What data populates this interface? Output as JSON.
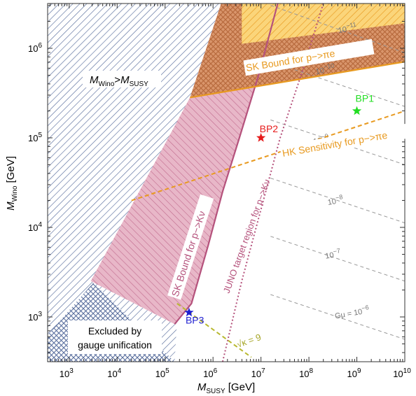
{
  "chart_data": {
    "type": "area",
    "title": "",
    "xlabel": {
      "main": "M",
      "sub": "SUSY",
      "unit": " [GeV]"
    },
    "ylabel": {
      "main": "M",
      "sub": "Wino",
      "unit": " [GeV]"
    },
    "xscale": "log",
    "yscale": "log",
    "xlim_log10": [
      2.55,
      10
    ],
    "ylim_log10": [
      2.5,
      6.5
    ],
    "x_ticks": [
      {
        "exp": 3,
        "label": "10",
        "sup": "3"
      },
      {
        "exp": 4,
        "label": "10",
        "sup": "4"
      },
      {
        "exp": 5,
        "label": "10",
        "sup": "5"
      },
      {
        "exp": 6,
        "label": "10",
        "sup": "6"
      },
      {
        "exp": 7,
        "label": "10",
        "sup": "7"
      },
      {
        "exp": 8,
        "label": "10",
        "sup": "8"
      },
      {
        "exp": 9,
        "label": "10",
        "sup": "9"
      },
      {
        "exp": 10,
        "label": "10",
        "sup": "10"
      }
    ],
    "y_ticks": [
      {
        "exp": 3,
        "label": "10",
        "sup": "3"
      },
      {
        "exp": 4,
        "label": "10",
        "sup": "4"
      },
      {
        "exp": 5,
        "label": "10",
        "sup": "5"
      },
      {
        "exp": 6,
        "label": "10",
        "sup": "6"
      }
    ],
    "regions": [
      {
        "id": "wino-gt-msusy",
        "color": "#5a6f9e",
        "points": [
          [
            2.55,
            2.5
          ],
          [
            2.55,
            6.5
          ],
          [
            6.17,
            6.5
          ],
          [
            5.52,
            5.45
          ],
          [
            5.2,
            2.5
          ]
        ]
      },
      {
        "id": "gauge-unification",
        "color": "#5a6f9e",
        "points": [
          [
            2.55,
            2.5
          ],
          [
            2.55,
            2.8
          ],
          [
            3.5,
            3.38
          ],
          [
            5.2,
            2.5
          ]
        ]
      },
      {
        "id": "sk-pkv-excluded",
        "color": "#c06a8d",
        "points": [
          [
            3.45,
            3.4
          ],
          [
            5.2,
            2.92
          ],
          [
            5.55,
            3.15
          ],
          [
            5.9,
            3.8
          ],
          [
            6.2,
            4.4
          ],
          [
            6.55,
            5.0
          ],
          [
            6.95,
            5.7
          ],
          [
            6.17,
            6.5
          ],
          [
            5.52,
            5.45
          ]
        ]
      },
      {
        "id": "sk-pie-excluded",
        "color": "#d48a30",
        "points": [
          [
            5.52,
            5.45
          ],
          [
            10,
            5.85
          ],
          [
            10,
            6.5
          ],
          [
            6.17,
            6.5
          ]
        ]
      },
      {
        "id": "sk-pie-band",
        "color": "#f0a830",
        "points": [
          [
            6.6,
            6.05
          ],
          [
            10,
            6.28
          ],
          [
            10,
            6.5
          ],
          [
            6.6,
            6.5
          ]
        ]
      }
    ],
    "curves": [
      {
        "id": "sk-pkv-boundary",
        "color": "#b5527c",
        "style": "solid",
        "points": [
          [
            5.2,
            2.92
          ],
          [
            5.55,
            3.15
          ],
          [
            5.9,
            3.8
          ],
          [
            6.2,
            4.4
          ],
          [
            6.55,
            5.0
          ],
          [
            6.95,
            5.7
          ],
          [
            7.35,
            6.5
          ]
        ]
      },
      {
        "id": "juno-target",
        "color": "#b5527c",
        "style": "dotted",
        "points": [
          [
            6.2,
            2.5
          ],
          [
            6.6,
            3.4
          ],
          [
            7.0,
            4.2
          ],
          [
            7.4,
            5.0
          ],
          [
            7.9,
            5.8
          ],
          [
            8.3,
            6.5
          ]
        ]
      },
      {
        "id": "sk-pie-boundary",
        "color": "#e89a20",
        "style": "solid",
        "points": [
          [
            5.52,
            5.45
          ],
          [
            10,
            5.85
          ]
        ]
      },
      {
        "id": "hk-sensitivity",
        "color": "#e89a20",
        "style": "dashed",
        "points": [
          [
            4.3,
            4.3
          ],
          [
            10,
            5.3
          ]
        ]
      },
      {
        "id": "sqrt-kappa-9",
        "color": "#b8b830",
        "style": "dashed",
        "points": [
          [
            5.25,
            3.15
          ],
          [
            6.8,
            2.55
          ]
        ]
      }
    ],
    "contours": [
      {
        "label": "10",
        "sup": "−11",
        "points": [
          [
            7.2,
            6.48
          ],
          [
            10,
            5.95
          ]
        ],
        "label_at": [
          8.62,
          6.17
        ]
      },
      {
        "label": "10",
        "sup": "−10",
        "points": [
          [
            7.2,
            5.85
          ],
          [
            10,
            5.35
          ]
        ],
        "label_at": [
          8.15,
          5.71
        ]
      },
      {
        "label": "10",
        "sup": "−9",
        "points": [
          [
            7.2,
            5.2
          ],
          [
            10,
            4.7
          ]
        ],
        "label_at": [
          8.1,
          4.93
        ]
      },
      {
        "label": "10",
        "sup": "−8",
        "points": [
          [
            7.2,
            4.55
          ],
          [
            10,
            4.05
          ]
        ],
        "label_at": [
          8.4,
          4.25
        ]
      },
      {
        "label": "10",
        "sup": "−7",
        "points": [
          [
            7.2,
            3.9
          ],
          [
            10,
            3.4
          ]
        ],
        "label_at": [
          8.35,
          3.65
        ]
      },
      {
        "label": "Gμ = 10",
        "sup": "−6",
        "points": [
          [
            7.2,
            3.25
          ],
          [
            10,
            2.75
          ]
        ],
        "label_at": [
          8.55,
          2.98
        ]
      }
    ],
    "benchmarks": [
      {
        "name": "BP1",
        "x_log10": 9,
        "y_log10": 5.3,
        "color": "#22dd22"
      },
      {
        "name": "BP2",
        "x_log10": 7,
        "y_log10": 5.0,
        "color": "#e61b1b"
      },
      {
        "name": "BP3",
        "x_log10": 5.5,
        "y_log10": 3.05,
        "color": "#1f1fd0"
      }
    ],
    "annotations": {
      "wino_region": {
        "main": "M",
        "sub": "Wino",
        "gt": ">",
        "main2": "M",
        "sub2": "SUSY"
      },
      "excluded": [
        "Excluded by",
        "gauge unification"
      ],
      "sk_pie": "SK Bound for p−>πe",
      "hk_pie": "HK Sensitivity for p−>πe",
      "sk_pkv": "SK Bound for p−>Kν",
      "juno": "JUNO target region for p−>Kν",
      "sqrt_kappa": "√κ = 9"
    }
  }
}
